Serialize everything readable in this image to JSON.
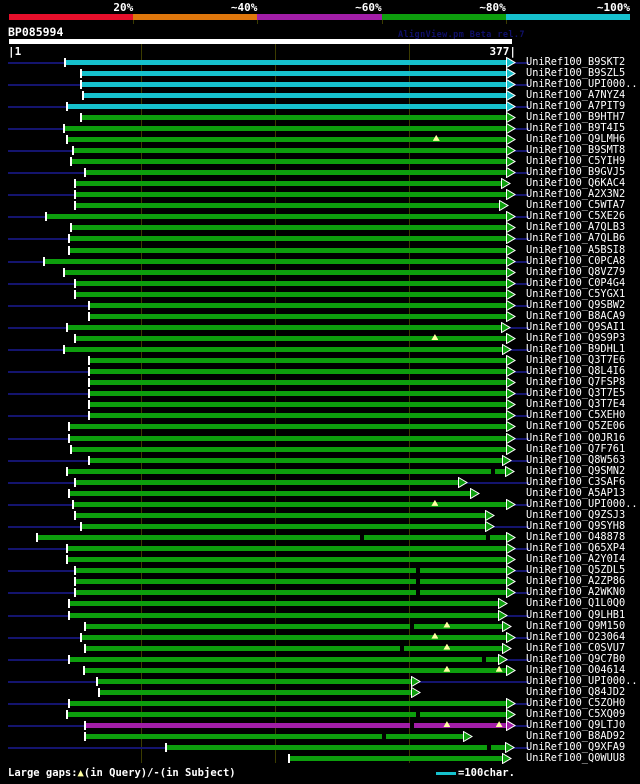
{
  "header": {
    "query_id": "BP085994",
    "watermark": "AlignView.pm Beta rel.7",
    "ruler_start": "|1",
    "ruler_end": "377|"
  },
  "identity_scale": [
    {
      "label": "20%",
      "color": "#e60f2b"
    },
    {
      "label": "~40%",
      "color": "#e0770c"
    },
    {
      "label": "~60%",
      "color": "#a21ea8"
    },
    {
      "label": "~80%",
      "color": "#0d9e0d"
    },
    {
      "label": "~100%",
      "color": "#16c1cd"
    }
  ],
  "chart_data": {
    "type": "alignment-overview",
    "query_id": "BP085994",
    "query_length": 377,
    "axis": {
      "start": 1,
      "end": 377,
      "gridlines": [
        100,
        200,
        300
      ]
    },
    "identity_colors": {
      "~60%": "#a21ea8",
      "~80%": "#0d9e0d",
      "~100%": "#16c1cd"
    },
    "rows": [
      {
        "label": "UniRef100_B9SKT2",
        "bin": "~100%",
        "start": 43,
        "end": 377
      },
      {
        "label": "UniRef100_B9SZL5",
        "bin": "~100%",
        "start": 55,
        "end": 377
      },
      {
        "label": "UniRef100_UPI000..",
        "bin": "~100%",
        "start": 55,
        "end": 377
      },
      {
        "label": "UniRef100_A7NYZ4",
        "bin": "~100%",
        "start": 56,
        "end": 377
      },
      {
        "label": "UniRef100_A7PIT9",
        "bin": "~100%",
        "start": 44,
        "end": 377
      },
      {
        "label": "UniRef100_B9HTH7",
        "bin": "~80%",
        "start": 55,
        "end": 377
      },
      {
        "label": "UniRef100_B9T4I5",
        "bin": "~80%",
        "start": 42,
        "end": 377
      },
      {
        "label": "UniRef100_Q9LMH6",
        "bin": "~80%",
        "start": 44,
        "end": 377,
        "query_gaps": [
          320
        ]
      },
      {
        "label": "UniRef100_B9SMT8",
        "bin": "~80%",
        "start": 49,
        "end": 377
      },
      {
        "label": "UniRef100_C5YIH9",
        "bin": "~80%",
        "start": 47,
        "end": 377
      },
      {
        "label": "UniRef100_B9GVJ5",
        "bin": "~80%",
        "start": 58,
        "end": 377
      },
      {
        "label": "UniRef100_Q6KAC4",
        "bin": "~80%",
        "start": 50,
        "end": 373
      },
      {
        "label": "UniRef100_A2X3N2",
        "bin": "~80%",
        "start": 50,
        "end": 377
      },
      {
        "label": "UniRef100_C5WTA7",
        "bin": "~80%",
        "start": 50,
        "end": 372
      },
      {
        "label": "UniRef100_C5XE26",
        "bin": "~80%",
        "start": 29,
        "end": 377
      },
      {
        "label": "UniRef100_A7QLB3",
        "bin": "~80%",
        "start": 47,
        "end": 377
      },
      {
        "label": "UniRef100_A7QLB6",
        "bin": "~80%",
        "start": 46,
        "end": 377
      },
      {
        "label": "UniRef100_A5BSI8",
        "bin": "~80%",
        "start": 46,
        "end": 377
      },
      {
        "label": "UniRef100_C0PCA8",
        "bin": "~80%",
        "start": 27,
        "end": 377
      },
      {
        "label": "UniRef100_Q8VZ79",
        "bin": "~80%",
        "start": 42,
        "end": 377
      },
      {
        "label": "UniRef100_C0P4G4",
        "bin": "~80%",
        "start": 50,
        "end": 377
      },
      {
        "label": "UniRef100_C5YGX1",
        "bin": "~80%",
        "start": 50,
        "end": 377
      },
      {
        "label": "UniRef100_Q9SBW2",
        "bin": "~80%",
        "start": 61,
        "end": 377
      },
      {
        "label": "UniRef100_B8ACA9",
        "bin": "~80%",
        "start": 61,
        "end": 377
      },
      {
        "label": "UniRef100_Q9SAI1",
        "bin": "~80%",
        "start": 44,
        "end": 373
      },
      {
        "label": "UniRef100_Q9S9P3",
        "bin": "~80%",
        "start": 50,
        "end": 377,
        "query_gaps": [
          319
        ]
      },
      {
        "label": "UniRef100_B9DHL1",
        "bin": "~80%",
        "start": 42,
        "end": 374
      },
      {
        "label": "UniRef100_Q3T7E6",
        "bin": "~80%",
        "start": 61,
        "end": 377
      },
      {
        "label": "UniRef100_Q8L4I6",
        "bin": "~80%",
        "start": 61,
        "end": 377
      },
      {
        "label": "UniRef100_Q7FSP8",
        "bin": "~80%",
        "start": 61,
        "end": 377
      },
      {
        "label": "UniRef100_Q3T7E5",
        "bin": "~80%",
        "start": 61,
        "end": 377
      },
      {
        "label": "UniRef100_Q3T7E4",
        "bin": "~80%",
        "start": 61,
        "end": 377
      },
      {
        "label": "UniRef100_C5XEH0",
        "bin": "~80%",
        "start": 61,
        "end": 377
      },
      {
        "label": "UniRef100_Q5ZE06",
        "bin": "~80%",
        "start": 46,
        "end": 377
      },
      {
        "label": "UniRef100_Q0JR16",
        "bin": "~80%",
        "start": 46,
        "end": 377
      },
      {
        "label": "UniRef100_Q7F761",
        "bin": "~80%",
        "start": 47,
        "end": 377
      },
      {
        "label": "UniRef100_Q8W563",
        "bin": "~80%",
        "start": 61,
        "end": 374
      },
      {
        "label": "UniRef100_Q9SMN2",
        "bin": "~80%",
        "start": 44,
        "end": 376,
        "subject_gaps": [
          363
        ]
      },
      {
        "label": "UniRef100_C3SAF6",
        "bin": "~80%",
        "start": 50,
        "end": 341
      },
      {
        "label": "UniRef100_A5AP13",
        "bin": "~80%",
        "start": 46,
        "end": 350
      },
      {
        "label": "UniRef100_UPI000..",
        "bin": "~80%",
        "start": 49,
        "end": 377,
        "query_gaps": [
          319
        ]
      },
      {
        "label": "UniRef100_Q9ZSJ3",
        "bin": "~80%",
        "start": 50,
        "end": 361
      },
      {
        "label": "UniRef100_Q9SYH8",
        "bin": "~80%",
        "start": 55,
        "end": 361
      },
      {
        "label": "UniRef100_O48878",
        "bin": "~80%",
        "start": 22,
        "end": 377,
        "subject_gaps": [
          265,
          359
        ]
      },
      {
        "label": "UniRef100_Q65XP4",
        "bin": "~80%",
        "start": 44,
        "end": 377
      },
      {
        "label": "UniRef100_A2Y0I4",
        "bin": "~80%",
        "start": 44,
        "end": 377
      },
      {
        "label": "UniRef100_Q5ZDL5",
        "bin": "~80%",
        "start": 50,
        "end": 377,
        "subject_gaps": [
          307
        ]
      },
      {
        "label": "UniRef100_A2ZP86",
        "bin": "~80%",
        "start": 50,
        "end": 377,
        "subject_gaps": [
          307
        ]
      },
      {
        "label": "UniRef100_A2WKN0",
        "bin": "~80%",
        "start": 50,
        "end": 377,
        "subject_gaps": [
          307
        ]
      },
      {
        "label": "UniRef100_Q1L0Q0",
        "bin": "~80%",
        "start": 46,
        "end": 371
      },
      {
        "label": "UniRef100_Q9LHB1",
        "bin": "~80%",
        "start": 46,
        "end": 371
      },
      {
        "label": "UniRef100_Q9M150",
        "bin": "~80%",
        "start": 58,
        "end": 374,
        "query_gaps": [
          328
        ],
        "subject_gaps": [
          302
        ]
      },
      {
        "label": "UniRef100_O23064",
        "bin": "~80%",
        "start": 55,
        "end": 377,
        "query_gaps": [
          319
        ]
      },
      {
        "label": "UniRef100_C0SVU7",
        "bin": "~80%",
        "start": 58,
        "end": 374,
        "query_gaps": [
          328
        ],
        "subject_gaps": [
          295
        ]
      },
      {
        "label": "UniRef100_Q9C7B0",
        "bin": "~80%",
        "start": 46,
        "end": 371,
        "subject_gaps": [
          356
        ]
      },
      {
        "label": "UniRef100_O04614",
        "bin": "~80%",
        "start": 57,
        "end": 377,
        "query_gaps": [
          328,
          367
        ]
      },
      {
        "label": "UniRef100_UPI000..",
        "bin": "~80%",
        "start": 67,
        "end": 306
      },
      {
        "label": "UniRef100_Q84JD2",
        "bin": "~80%",
        "start": 68,
        "end": 306
      },
      {
        "label": "UniRef100_C5ZOH0",
        "bin": "~80%",
        "start": 46,
        "end": 377
      },
      {
        "label": "UniRef100_C5XQ09",
        "bin": "~80%",
        "start": 44,
        "end": 377,
        "subject_gaps": [
          307
        ]
      },
      {
        "label": "UniRef100_Q9LTJ0",
        "bin": "~60%",
        "start": 58,
        "end": 377,
        "query_gaps": [
          328,
          367
        ],
        "subject_gaps": [
          302
        ]
      },
      {
        "label": "UniRef100_B8AD92",
        "bin": "~80%",
        "start": 58,
        "end": 345,
        "subject_gaps": [
          281
        ]
      },
      {
        "label": "UniRef100_Q9XFA9",
        "bin": "~80%",
        "start": 118,
        "end": 376,
        "subject_gaps": [
          360
        ]
      },
      {
        "label": "UniRef100_Q0WUU8",
        "bin": "~80%",
        "start": 210,
        "end": 374
      }
    ]
  },
  "legend": {
    "gaps_prefix": "Large gaps:",
    "query_gap_symbol": "▲",
    "gaps_query_text": "(in Query)/",
    "subject_gap_symbol": "-",
    "gaps_subject_text": "(in Subject)",
    "scale_text": "=100char."
  }
}
